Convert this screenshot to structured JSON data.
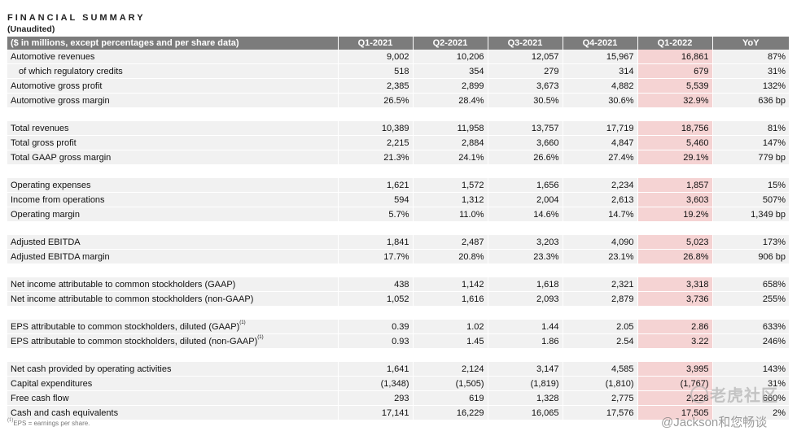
{
  "header": {
    "title": "FINANCIAL SUMMARY",
    "subtitle": "(Unaudited)"
  },
  "table": {
    "columns": [
      "($ in millions, except percentages and per share data)",
      "Q1-2021",
      "Q2-2021",
      "Q3-2021",
      "Q4-2021",
      "Q1-2022",
      "YoY"
    ],
    "highlight_color": "#f5d3d3",
    "groups": [
      [
        {
          "label": "Automotive revenues",
          "values": [
            "9,002",
            "10,206",
            "12,057",
            "15,967",
            "16,861",
            "87%"
          ]
        },
        {
          "label": "of which regulatory credits",
          "indent": true,
          "values": [
            "518",
            "354",
            "279",
            "314",
            "679",
            "31%"
          ]
        },
        {
          "label": "Automotive gross profit",
          "values": [
            "2,385",
            "2,899",
            "3,673",
            "4,882",
            "5,539",
            "132%"
          ]
        },
        {
          "label": "Automotive gross margin",
          "values": [
            "26.5%",
            "28.4%",
            "30.5%",
            "30.6%",
            "32.9%",
            "636 bp"
          ]
        }
      ],
      [
        {
          "label": "Total revenues",
          "values": [
            "10,389",
            "11,958",
            "13,757",
            "17,719",
            "18,756",
            "81%"
          ]
        },
        {
          "label": "Total gross profit",
          "values": [
            "2,215",
            "2,884",
            "3,660",
            "4,847",
            "5,460",
            "147%"
          ]
        },
        {
          "label": "Total GAAP gross margin",
          "values": [
            "21.3%",
            "24.1%",
            "26.6%",
            "27.4%",
            "29.1%",
            "779 bp"
          ]
        }
      ],
      [
        {
          "label": "Operating expenses",
          "values": [
            "1,621",
            "1,572",
            "1,656",
            "2,234",
            "1,857",
            "15%"
          ]
        },
        {
          "label": "Income from operations",
          "values": [
            "594",
            "1,312",
            "2,004",
            "2,613",
            "3,603",
            "507%"
          ]
        },
        {
          "label": "Operating margin",
          "values": [
            "5.7%",
            "11.0%",
            "14.6%",
            "14.7%",
            "19.2%",
            "1,349 bp"
          ]
        }
      ],
      [
        {
          "label": "Adjusted EBITDA",
          "values": [
            "1,841",
            "2,487",
            "3,203",
            "4,090",
            "5,023",
            "173%"
          ]
        },
        {
          "label": "Adjusted EBITDA margin",
          "values": [
            "17.7%",
            "20.8%",
            "23.3%",
            "23.1%",
            "26.8%",
            "906 bp"
          ]
        }
      ],
      [
        {
          "label": "Net income attributable to common stockholders (GAAP)",
          "values": [
            "438",
            "1,142",
            "1,618",
            "2,321",
            "3,318",
            "658%"
          ]
        },
        {
          "label": "Net income attributable to common stockholders (non-GAAP)",
          "values": [
            "1,052",
            "1,616",
            "2,093",
            "2,879",
            "3,736",
            "255%"
          ]
        }
      ],
      [
        {
          "label": "EPS attributable to common stockholders, diluted (GAAP)",
          "sup": "(1)",
          "values": [
            "0.39",
            "1.02",
            "1.44",
            "2.05",
            "2.86",
            "633%"
          ]
        },
        {
          "label": "EPS attributable to common stockholders, diluted (non-GAAP)",
          "sup": "(1)",
          "values": [
            "0.93",
            "1.45",
            "1.86",
            "2.54",
            "3.22",
            "246%"
          ]
        }
      ],
      [
        {
          "label": "Net cash provided by operating activities",
          "values": [
            "1,641",
            "2,124",
            "3,147",
            "4,585",
            "3,995",
            "143%"
          ]
        },
        {
          "label": "Capital expenditures",
          "values": [
            "(1,348)",
            "(1,505)",
            "(1,819)",
            "(1,810)",
            "(1,767)",
            "31%"
          ]
        },
        {
          "label": "Free cash flow",
          "values": [
            "293",
            "619",
            "1,328",
            "2,775",
            "2,228",
            "660%"
          ]
        },
        {
          "label": "Cash and cash equivalents",
          "values": [
            "17,141",
            "16,229",
            "16,065",
            "17,576",
            "17,505",
            "2%"
          ]
        }
      ]
    ]
  },
  "footnote": {
    "sup": "(1)",
    "text": "EPS = earnings per share."
  },
  "watermark": {
    "logo_text": "老虎社区",
    "handle": "@Jackson和您畅谈"
  }
}
